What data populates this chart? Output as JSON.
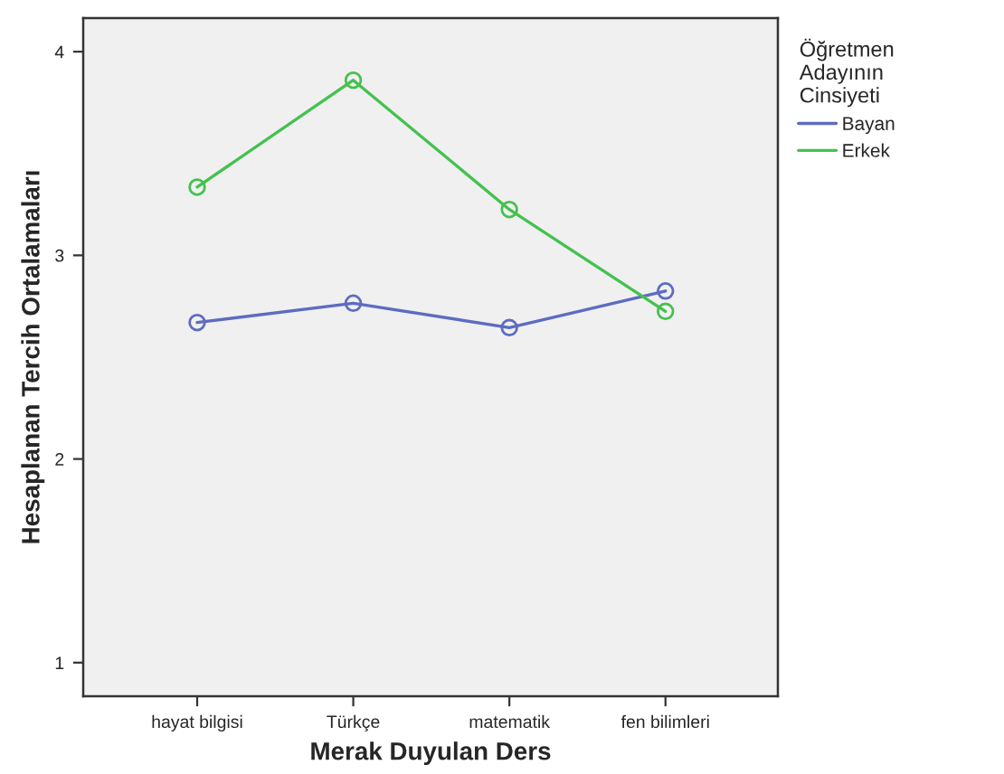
{
  "chart_data": {
    "type": "line",
    "xlabel": "Merak Duyulan Ders",
    "ylabel": "Hesaplanan Tercih Ortalamaları",
    "legend_title": "Öğretmen\nAdayının\nCinsiyeti",
    "categories": [
      "hayat bilgisi",
      "Türkçe",
      "matematik",
      "fen bilimleri"
    ],
    "series": [
      {
        "name": "Bayan",
        "color": "#5d6cc0",
        "values": [
          2.67,
          2.765,
          2.645,
          2.825
        ]
      },
      {
        "name": "Erkek",
        "color": "#45c14f",
        "values": [
          3.335,
          3.86,
          3.225,
          2.725
        ]
      }
    ],
    "ylim": [
      0.835,
      4.165
    ],
    "yticks": [
      1,
      2,
      3,
      4
    ],
    "marker": "circle",
    "legend": "top right",
    "grid": false
  }
}
